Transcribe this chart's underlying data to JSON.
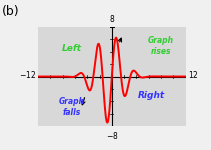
{
  "title_label": "(b)",
  "xlim": [
    -12,
    12
  ],
  "ylim": [
    -8,
    8
  ],
  "fig_bg": "#f0f0f0",
  "box_bg": "#d8d8d8",
  "left_label": "Left",
  "right_label": "Right",
  "graph_rises_label": "Graph\nrises",
  "graph_falls_label": "Graph\nfalls",
  "left_label_color": "#33cc33",
  "right_label_color": "#3333ff",
  "graph_rises_color": "#33cc33",
  "graph_falls_color": "#3333ff",
  "curve_color": "#ff0000",
  "arrow_color": "#000000",
  "title_color": "#000000",
  "axis_label_color": "#000000",
  "axis_lw": 0.8,
  "curve_lw": 1.4
}
